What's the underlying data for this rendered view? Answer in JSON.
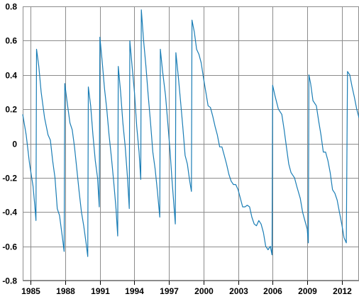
{
  "chart_data": {
    "type": "line",
    "title": "",
    "xlabel": "",
    "ylabel": "",
    "xlim": [
      1984.3,
      2013.5
    ],
    "ylim": [
      -0.8,
      0.8
    ],
    "grid": true,
    "legend": "none",
    "colors": {
      "series": "#1a7db5",
      "grid": "#8c8c8c",
      "text": "#000000"
    },
    "x_ticks": [
      1985,
      1988,
      1991,
      1994,
      1997,
      2000,
      2003,
      2006,
      2009,
      2012
    ],
    "x_tick_labels": [
      "1985",
      "1988",
      "1991",
      "1994",
      "1997",
      "2000",
      "2003",
      "2006",
      "2009",
      "2012"
    ],
    "y_ticks": [
      -0.8,
      -0.6,
      -0.4,
      -0.2,
      0,
      0.2,
      0.4,
      0.6,
      0.8
    ],
    "y_tick_labels": [
      "-0.8",
      "-0.6",
      "-0.4",
      "-0.2",
      "0",
      "0.2",
      "0.4",
      "0.6",
      "0.8"
    ],
    "series": [
      {
        "name": "",
        "points": [
          [
            1984.3,
            0.17
          ],
          [
            1984.6,
            0.05
          ],
          [
            1984.9,
            -0.12
          ],
          [
            1985.2,
            -0.25
          ],
          [
            1985.35,
            -0.36
          ],
          [
            1985.45,
            -0.45
          ],
          [
            1985.5,
            0.55
          ],
          [
            1985.7,
            0.45
          ],
          [
            1985.9,
            0.3
          ],
          [
            1986.2,
            0.15
          ],
          [
            1986.5,
            0.05
          ],
          [
            1986.7,
            0.02
          ],
          [
            1986.9,
            -0.1
          ],
          [
            1987.1,
            -0.2
          ],
          [
            1987.3,
            -0.38
          ],
          [
            1987.5,
            -0.42
          ],
          [
            1987.75,
            -0.55
          ],
          [
            1987.9,
            -0.63
          ],
          [
            1987.95,
            0.35
          ],
          [
            1988.2,
            0.22
          ],
          [
            1988.4,
            0.12
          ],
          [
            1988.6,
            0.08
          ],
          [
            1988.8,
            -0.02
          ],
          [
            1989.0,
            -0.15
          ],
          [
            1989.2,
            -0.28
          ],
          [
            1989.4,
            -0.4
          ],
          [
            1989.6,
            -0.48
          ],
          [
            1989.8,
            -0.58
          ],
          [
            1989.95,
            -0.66
          ],
          [
            1990.0,
            0.33
          ],
          [
            1990.2,
            0.22
          ],
          [
            1990.4,
            0.05
          ],
          [
            1990.6,
            -0.1
          ],
          [
            1990.8,
            -0.2
          ],
          [
            1990.95,
            -0.37
          ],
          [
            1991.0,
            0.62
          ],
          [
            1991.2,
            0.48
          ],
          [
            1991.4,
            0.32
          ],
          [
            1991.6,
            0.2
          ],
          [
            1991.8,
            0.05
          ],
          [
            1992.0,
            -0.08
          ],
          [
            1992.2,
            -0.22
          ],
          [
            1992.4,
            -0.38
          ],
          [
            1992.55,
            -0.54
          ],
          [
            1992.6,
            0.45
          ],
          [
            1992.8,
            0.3
          ],
          [
            1993.0,
            0.12
          ],
          [
            1993.2,
            -0.02
          ],
          [
            1993.4,
            -0.2
          ],
          [
            1993.55,
            -0.38
          ],
          [
            1993.6,
            0.6
          ],
          [
            1993.8,
            0.45
          ],
          [
            1994.0,
            0.3
          ],
          [
            1994.2,
            0.1
          ],
          [
            1994.4,
            -0.05
          ],
          [
            1994.55,
            -0.21
          ],
          [
            1994.6,
            0.78
          ],
          [
            1994.8,
            0.6
          ],
          [
            1995.0,
            0.45
          ],
          [
            1995.2,
            0.28
          ],
          [
            1995.4,
            0.12
          ],
          [
            1995.6,
            -0.05
          ],
          [
            1995.8,
            -0.15
          ],
          [
            1996.0,
            -0.28
          ],
          [
            1996.2,
            -0.43
          ],
          [
            1996.25,
            0.55
          ],
          [
            1996.45,
            0.42
          ],
          [
            1996.7,
            0.28
          ],
          [
            1996.9,
            0.12
          ],
          [
            1997.1,
            -0.05
          ],
          [
            1997.25,
            -0.2
          ],
          [
            1997.45,
            -0.38
          ],
          [
            1997.55,
            -0.47
          ],
          [
            1997.6,
            0.53
          ],
          [
            1997.8,
            0.4
          ],
          [
            1998.0,
            0.25
          ],
          [
            1998.2,
            0.1
          ],
          [
            1998.4,
            -0.07
          ],
          [
            1998.6,
            -0.12
          ],
          [
            1998.8,
            -0.22
          ],
          [
            1998.95,
            -0.28
          ],
          [
            1999.0,
            0.72
          ],
          [
            1999.2,
            0.65
          ],
          [
            1999.4,
            0.55
          ],
          [
            1999.6,
            0.52
          ],
          [
            1999.8,
            0.47
          ],
          [
            2000.0,
            0.38
          ],
          [
            2000.2,
            0.3
          ],
          [
            2000.4,
            0.22
          ],
          [
            2000.6,
            0.21
          ],
          [
            2000.8,
            0.16
          ],
          [
            2001.0,
            0.1
          ],
          [
            2001.2,
            0.05
          ],
          [
            2001.4,
            -0.02
          ],
          [
            2001.6,
            -0.02
          ],
          [
            2001.8,
            -0.07
          ],
          [
            2002.0,
            -0.12
          ],
          [
            2002.2,
            -0.18
          ],
          [
            2002.4,
            -0.22
          ],
          [
            2002.6,
            -0.24
          ],
          [
            2002.8,
            -0.24
          ],
          [
            2003.0,
            -0.27
          ],
          [
            2003.2,
            -0.32
          ],
          [
            2003.4,
            -0.37
          ],
          [
            2003.6,
            -0.37
          ],
          [
            2003.8,
            -0.36
          ],
          [
            2004.0,
            -0.37
          ],
          [
            2004.2,
            -0.43
          ],
          [
            2004.4,
            -0.47
          ],
          [
            2004.6,
            -0.48
          ],
          [
            2004.8,
            -0.45
          ],
          [
            2005.0,
            -0.47
          ],
          [
            2005.2,
            -0.52
          ],
          [
            2005.4,
            -0.6
          ],
          [
            2005.6,
            -0.62
          ],
          [
            2005.8,
            -0.6
          ],
          [
            2005.95,
            -0.65
          ],
          [
            2006.0,
            0.34
          ],
          [
            2006.2,
            0.28
          ],
          [
            2006.5,
            0.2
          ],
          [
            2006.8,
            0.17
          ],
          [
            2007.0,
            0.08
          ],
          [
            2007.2,
            -0.02
          ],
          [
            2007.4,
            -0.12
          ],
          [
            2007.6,
            -0.17
          ],
          [
            2007.9,
            -0.2
          ],
          [
            2008.1,
            -0.25
          ],
          [
            2008.4,
            -0.32
          ],
          [
            2008.6,
            -0.4
          ],
          [
            2008.8,
            -0.45
          ],
          [
            2009.0,
            -0.5
          ],
          [
            2009.1,
            -0.58
          ],
          [
            2009.15,
            0.4
          ],
          [
            2009.3,
            0.35
          ],
          [
            2009.5,
            0.25
          ],
          [
            2009.8,
            0.22
          ],
          [
            2010.0,
            0.13
          ],
          [
            2010.2,
            0.05
          ],
          [
            2010.4,
            -0.05
          ],
          [
            2010.6,
            -0.05
          ],
          [
            2010.8,
            -0.1
          ],
          [
            2011.0,
            -0.17
          ],
          [
            2011.2,
            -0.27
          ],
          [
            2011.4,
            -0.29
          ],
          [
            2011.6,
            -0.33
          ],
          [
            2011.8,
            -0.4
          ],
          [
            2012.0,
            -0.47
          ],
          [
            2012.2,
            -0.55
          ],
          [
            2012.4,
            -0.58
          ],
          [
            2012.5,
            0.42
          ],
          [
            2012.7,
            0.4
          ],
          [
            2012.9,
            0.33
          ],
          [
            2013.1,
            0.27
          ],
          [
            2013.3,
            0.2
          ],
          [
            2013.5,
            0.15
          ]
        ]
      }
    ]
  }
}
